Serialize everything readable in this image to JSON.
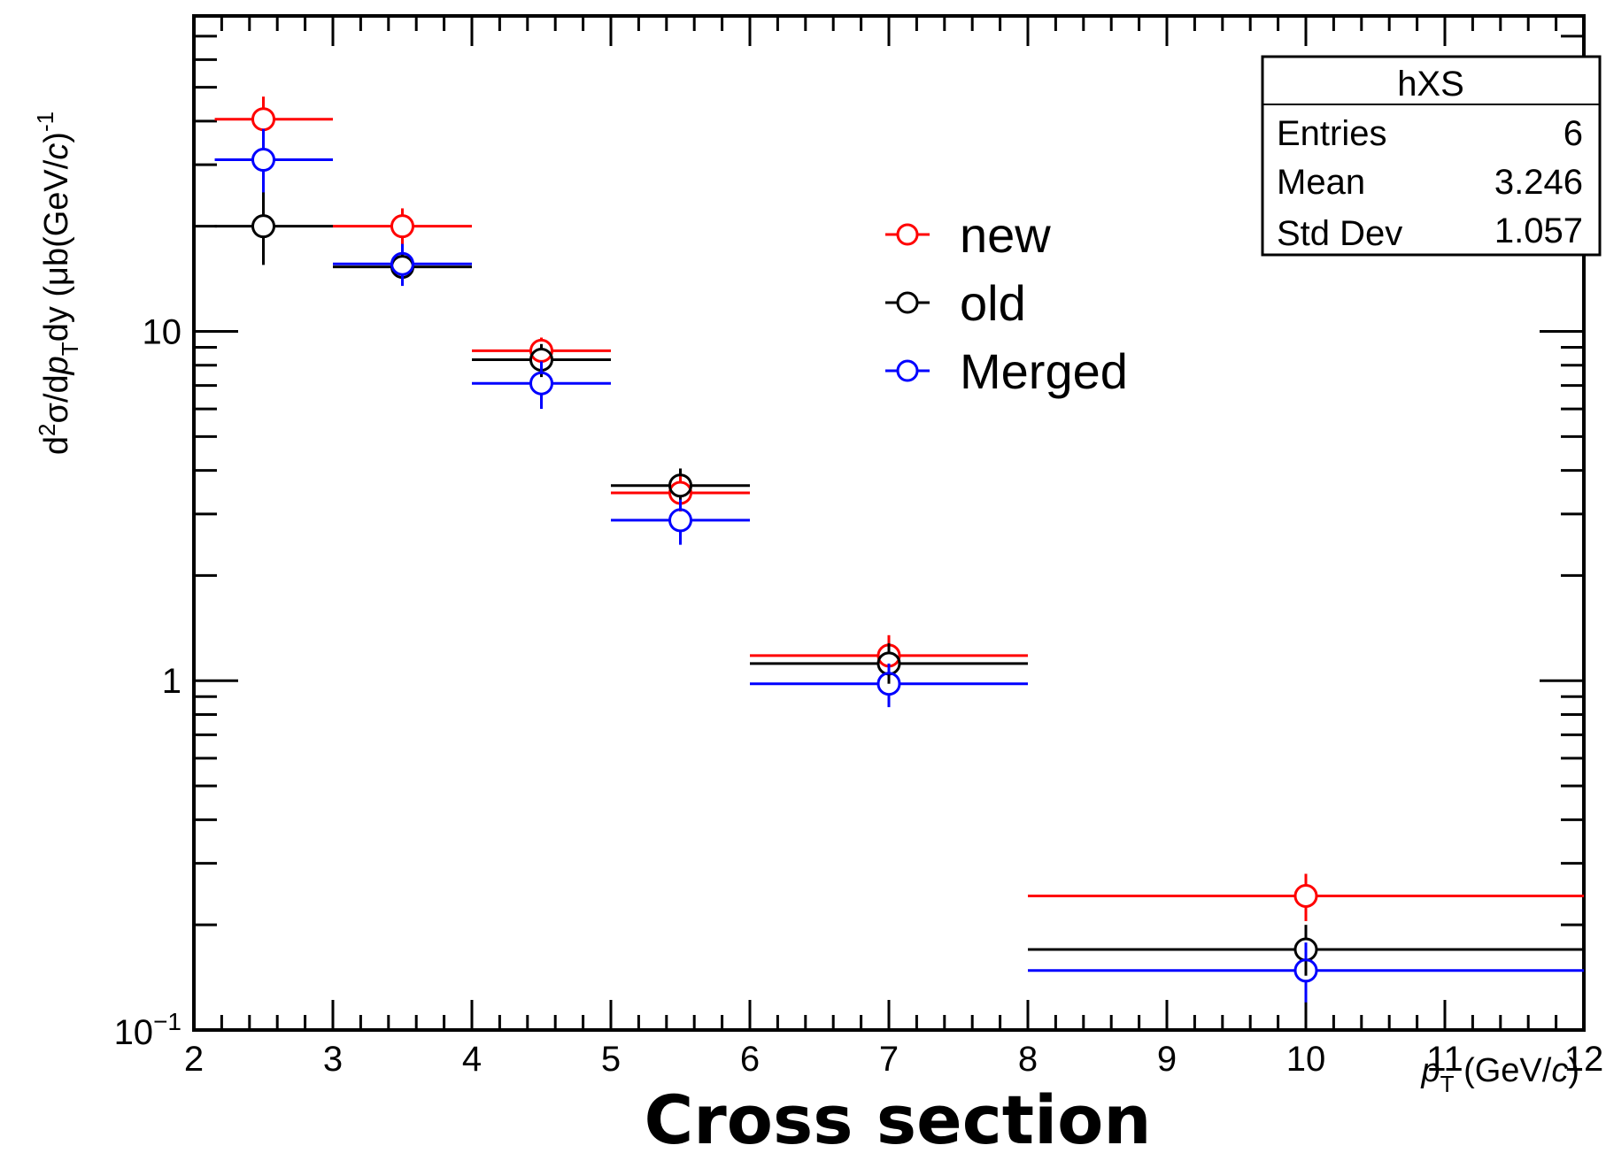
{
  "chart_data": {
    "type": "scatter",
    "title": "Cross section",
    "xlabel": {
      "main": "p",
      "sub": "T",
      "unit_prefix": " (GeV/",
      "unit_var": "c",
      "unit_suffix": ")"
    },
    "ylabel": {
      "p1": "d",
      "p1sup": "2",
      "p2": "σ/d",
      "p3": "p",
      "p3sub": "T",
      "p4": "dy (μb(GeV/",
      "p5": "c",
      "p6": ")",
      "p6sup": "-1"
    },
    "xlim": [
      2,
      12
    ],
    "ylim": [
      0.1,
      80
    ],
    "yscale": "log",
    "x_tick_labels": [
      "2",
      "3",
      "4",
      "5",
      "6",
      "7",
      "8",
      "9",
      "10",
      "11",
      "12"
    ],
    "y_tick_labels": [
      {
        "value": 0.1,
        "base": "10",
        "exp": "−1"
      },
      {
        "value": 1,
        "base": "1",
        "exp": ""
      },
      {
        "value": 10,
        "base": "10",
        "exp": ""
      }
    ],
    "series": [
      {
        "name": "new",
        "color": "#ff0000",
        "points": [
          {
            "x": 2.5,
            "xlo": 2.15,
            "xhi": 3.0,
            "y": 40.5,
            "ylo": 35.0,
            "yhi": 47.0
          },
          {
            "x": 3.5,
            "xlo": 3.0,
            "xhi": 4.0,
            "y": 20.0,
            "ylo": 17.5,
            "yhi": 22.5
          },
          {
            "x": 4.5,
            "xlo": 4.0,
            "xhi": 5.0,
            "y": 8.8,
            "ylo": 8.0,
            "yhi": 9.6
          },
          {
            "x": 5.5,
            "xlo": 5.0,
            "xhi": 6.0,
            "y": 3.45,
            "ylo": 3.05,
            "yhi": 3.85
          },
          {
            "x": 7.0,
            "xlo": 6.0,
            "xhi": 8.0,
            "y": 1.18,
            "ylo": 1.02,
            "yhi": 1.35
          },
          {
            "x": 10.0,
            "xlo": 8.0,
            "xhi": 12.0,
            "y": 0.242,
            "ylo": 0.205,
            "yhi": 0.28
          }
        ]
      },
      {
        "name": "old",
        "color": "#000000",
        "points": [
          {
            "x": 2.5,
            "xlo": 2.15,
            "xhi": 3.0,
            "y": 20.0,
            "ylo": 15.5,
            "yhi": 26.0
          },
          {
            "x": 3.5,
            "xlo": 3.0,
            "xhi": 4.0,
            "y": 15.3,
            "ylo": 13.5,
            "yhi": 17.0
          },
          {
            "x": 4.5,
            "xlo": 4.0,
            "xhi": 5.0,
            "y": 8.3,
            "ylo": 7.4,
            "yhi": 9.2
          },
          {
            "x": 5.5,
            "xlo": 5.0,
            "xhi": 6.0,
            "y": 3.62,
            "ylo": 3.2,
            "yhi": 4.05
          },
          {
            "x": 7.0,
            "xlo": 6.0,
            "xhi": 8.0,
            "y": 1.12,
            "ylo": 0.98,
            "yhi": 1.28
          },
          {
            "x": 10.0,
            "xlo": 8.0,
            "xhi": 12.0,
            "y": 0.17,
            "ylo": 0.143,
            "yhi": 0.2
          }
        ]
      },
      {
        "name": "Merged",
        "color": "#0000ff",
        "points": [
          {
            "x": 2.5,
            "xlo": 2.15,
            "xhi": 3.0,
            "y": 31.0,
            "ylo": 25.0,
            "yhi": 38.0
          },
          {
            "x": 3.5,
            "xlo": 3.0,
            "xhi": 4.0,
            "y": 15.6,
            "ylo": 13.5,
            "yhi": 17.8
          },
          {
            "x": 4.5,
            "xlo": 4.0,
            "xhi": 5.0,
            "y": 7.1,
            "ylo": 6.0,
            "yhi": 8.2
          },
          {
            "x": 5.5,
            "xlo": 5.0,
            "xhi": 6.0,
            "y": 2.88,
            "ylo": 2.45,
            "yhi": 3.3
          },
          {
            "x": 7.0,
            "xlo": 6.0,
            "xhi": 8.0,
            "y": 0.98,
            "ylo": 0.84,
            "yhi": 1.12
          },
          {
            "x": 10.0,
            "xlo": 8.0,
            "xhi": 12.0,
            "y": 0.148,
            "ylo": 0.12,
            "yhi": 0.178
          }
        ]
      }
    ],
    "legend": {
      "entries": [
        "new",
        "old",
        "Merged"
      ]
    },
    "stats_box": {
      "title": "hXS",
      "rows": [
        {
          "label": "Entries",
          "value": "6"
        },
        {
          "label": "Mean",
          "value": "3.246"
        },
        {
          "label": "Std Dev",
          "value": "1.057"
        }
      ]
    }
  }
}
